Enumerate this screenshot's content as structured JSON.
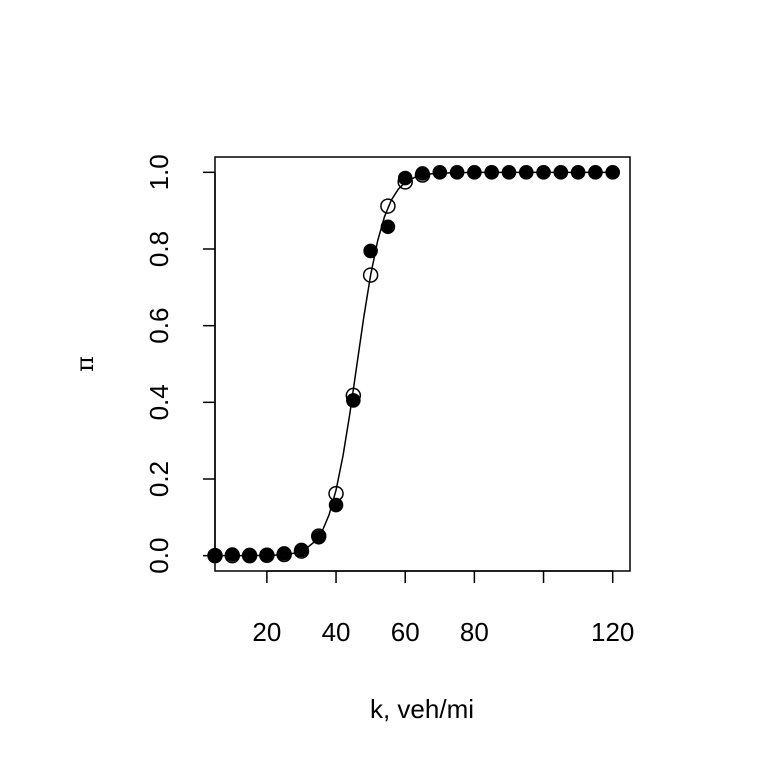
{
  "chart_data": {
    "type": "scatter",
    "title": "",
    "xlabel": "k, veh/mi",
    "ylabel": "π",
    "xlim": [
      5,
      125
    ],
    "ylim": [
      -0.04,
      1.04
    ],
    "xticks": [
      20,
      40,
      60,
      80,
      100,
      120
    ],
    "xtick_labels": [
      "20",
      "40",
      "60",
      "80",
      "",
      "120"
    ],
    "yticks": [
      0.0,
      0.2,
      0.4,
      0.6,
      0.8,
      1.0
    ],
    "ytick_labels": [
      "0.0",
      "0.2",
      "0.4",
      "0.6",
      "0.8",
      "1.0"
    ],
    "grid": false,
    "series": [
      {
        "style": "filled-circle",
        "color": "#000000",
        "x": [
          5,
          10,
          15,
          20,
          25,
          30,
          35,
          40,
          45,
          50,
          55,
          60,
          65,
          70,
          75,
          80,
          85,
          90,
          95,
          100,
          105,
          110,
          115,
          120
        ],
        "y": [
          0.0,
          0.003,
          0.002,
          0.002,
          0.006,
          0.015,
          0.048,
          0.132,
          0.405,
          0.795,
          0.858,
          0.985,
          0.997,
          1.0,
          1.0,
          1.0,
          1.0,
          1.0,
          1.0,
          1.0,
          1.0,
          1.0,
          1.0,
          1.0
        ]
      },
      {
        "style": "open-circle",
        "color": "#000000",
        "x": [
          5,
          10,
          15,
          20,
          25,
          30,
          35,
          40,
          45,
          50,
          55,
          60,
          65
        ],
        "y": [
          0.0,
          0.0,
          0.0,
          0.001,
          0.003,
          0.012,
          0.051,
          0.162,
          0.418,
          0.732,
          0.912,
          0.975,
          0.993
        ]
      },
      {
        "style": "line",
        "color": "#000000",
        "x": [
          5,
          10,
          15,
          20,
          25,
          28,
          31,
          34,
          36,
          38,
          40,
          42,
          44,
          46,
          48,
          50,
          52,
          54,
          56,
          58,
          60,
          63,
          66,
          70,
          75,
          80,
          90,
          100,
          110,
          120
        ],
        "y": [
          0.0,
          0.0,
          0.0002,
          0.0006,
          0.0025,
          0.0065,
          0.016,
          0.038,
          0.064,
          0.107,
          0.171,
          0.26,
          0.371,
          0.496,
          0.621,
          0.732,
          0.82,
          0.884,
          0.928,
          0.956,
          0.974,
          0.988,
          0.995,
          0.998,
          0.999,
          1.0,
          1.0,
          1.0,
          1.0,
          1.0
        ]
      }
    ]
  }
}
